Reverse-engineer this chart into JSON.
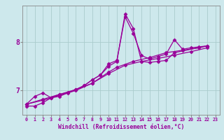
{
  "background_color": "#cde8ec",
  "line_color": "#990099",
  "marker_style": "D",
  "marker_size": 2.5,
  "linewidth": 0.9,
  "xlabel": "Windchill (Refroidissement éolien,°C)",
  "xlim": [
    -0.5,
    23.5
  ],
  "ylim": [
    6.5,
    8.75
  ],
  "xticks": [
    0,
    1,
    2,
    3,
    4,
    5,
    6,
    7,
    8,
    9,
    10,
    11,
    12,
    13,
    14,
    15,
    16,
    17,
    18,
    19,
    20,
    21,
    22,
    23
  ],
  "yticks": [
    7,
    8
  ],
  "grid_color": "#b8d8dc",
  "curves": [
    [
      [
        0,
        6.72
      ],
      [
        1,
        6.88
      ],
      [
        2,
        6.95
      ],
      [
        3,
        6.85
      ],
      [
        4,
        6.92
      ],
      [
        5,
        6.96
      ],
      [
        6,
        7.02
      ],
      [
        7,
        7.1
      ],
      [
        8,
        7.22
      ],
      [
        9,
        7.32
      ],
      [
        10,
        7.55
      ],
      [
        11,
        7.62
      ],
      [
        12,
        8.52
      ],
      [
        13,
        8.18
      ],
      [
        14,
        7.72
      ],
      [
        15,
        7.65
      ],
      [
        16,
        7.7
      ],
      [
        17,
        7.75
      ],
      [
        18,
        8.05
      ],
      [
        19,
        7.85
      ],
      [
        20,
        7.88
      ],
      [
        21,
        7.9
      ],
      [
        22,
        7.92
      ]
    ],
    [
      [
        0,
        6.68
      ],
      [
        1,
        6.68
      ],
      [
        2,
        6.75
      ],
      [
        3,
        6.85
      ],
      [
        4,
        6.88
      ],
      [
        5,
        6.95
      ],
      [
        6,
        7.02
      ],
      [
        7,
        7.1
      ],
      [
        8,
        7.22
      ],
      [
        9,
        7.32
      ],
      [
        10,
        7.5
      ],
      [
        11,
        7.6
      ],
      [
        12,
        8.58
      ],
      [
        13,
        8.28
      ],
      [
        14,
        7.6
      ],
      [
        15,
        7.58
      ],
      [
        16,
        7.6
      ],
      [
        17,
        7.62
      ],
      [
        18,
        7.78
      ],
      [
        22,
        7.92
      ]
    ],
    [
      [
        0,
        6.72
      ],
      [
        2,
        6.82
      ],
      [
        4,
        6.92
      ],
      [
        6,
        7.02
      ],
      [
        8,
        7.15
      ],
      [
        10,
        7.38
      ],
      [
        11,
        7.48
      ],
      [
        13,
        7.6
      ],
      [
        15,
        7.68
      ],
      [
        17,
        7.78
      ],
      [
        19,
        7.83
      ],
      [
        21,
        7.88
      ],
      [
        22,
        7.92
      ]
    ],
    [
      [
        0,
        6.72
      ],
      [
        2,
        6.8
      ],
      [
        4,
        6.9
      ],
      [
        6,
        7.0
      ],
      [
        8,
        7.15
      ],
      [
        10,
        7.35
      ],
      [
        12,
        7.52
      ],
      [
        14,
        7.6
      ],
      [
        16,
        7.66
      ],
      [
        18,
        7.73
      ],
      [
        20,
        7.8
      ],
      [
        22,
        7.88
      ]
    ]
  ]
}
